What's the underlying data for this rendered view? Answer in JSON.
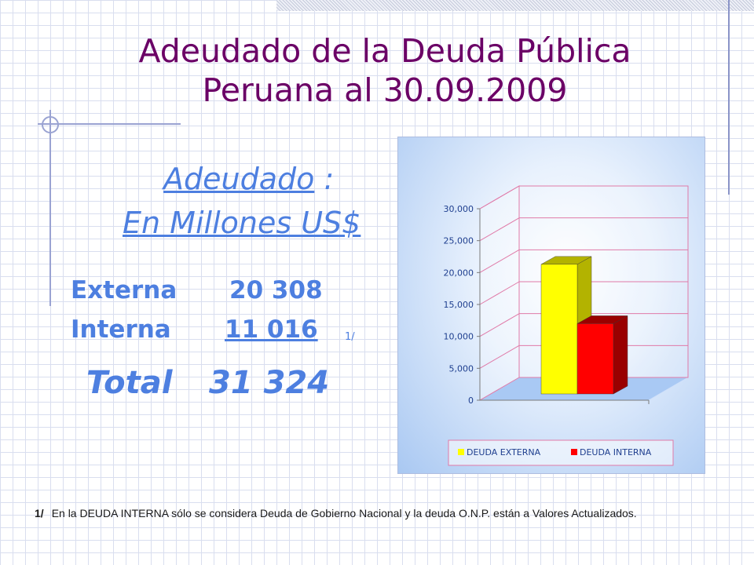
{
  "title": {
    "line1": "Adeudado de la Deuda Pública",
    "line2": "Peruana al 30.09.2009"
  },
  "subtitle": {
    "word": "Adeudado",
    "colon": " :",
    "line2": "En Millones US$"
  },
  "summary": {
    "externa_label": "Externa",
    "externa_value": "20 308",
    "interna_label": "Interna",
    "interna_value": "11 016",
    "interna_note": "1/",
    "total_label": "Total",
    "total_value": "31 324"
  },
  "footnote": {
    "mark": "1/",
    "text": "En la DEUDA INTERNA sólo se considera Deuda de Gobierno Nacional y la deuda O.N.P. están a Valores Actualizados."
  },
  "colors": {
    "title": "#6b0066",
    "text_blue": "#4d7fe0",
    "externa_front": "#ffff00",
    "externa_side": "#b3b300",
    "interna_front": "#ff0000",
    "interna_side": "#990000",
    "axis_text": "#1f3f8f",
    "grid": "#e07aa8"
  },
  "chart_data": {
    "type": "bar",
    "categories": [
      ""
    ],
    "series": [
      {
        "name": "DEUDA EXTERNA",
        "values": [
          20308
        ]
      },
      {
        "name": "DEUDA INTERNA",
        "values": [
          11016
        ]
      }
    ],
    "ylim": [
      0,
      30000
    ],
    "yticks": [
      0,
      5000,
      10000,
      15000,
      20000,
      25000,
      30000
    ],
    "ytick_labels": [
      "0",
      "5,000",
      "10,000",
      "15,000",
      "20,000",
      "25,000",
      "30,000"
    ],
    "grid": true,
    "legend": "bottom",
    "title": "",
    "xlabel": "",
    "ylabel": ""
  }
}
